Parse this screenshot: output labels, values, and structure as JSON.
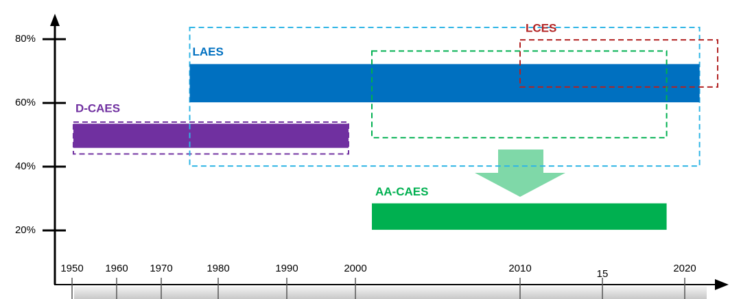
{
  "chart_data": {
    "type": "range-bar",
    "xlim": [
      1946,
      2022.5
    ],
    "xticks": [
      1950,
      1960,
      1970,
      1980,
      1990,
      2000,
      2010,
      {
        "value": 2015,
        "label": "15"
      },
      2020
    ],
    "ylim": [
      3,
      88
    ],
    "yticks": [
      {
        "value": 20,
        "label": "20%"
      },
      {
        "value": 40,
        "label": "40%"
      },
      {
        "value": 60,
        "label": "60%"
      },
      {
        "value": 80,
        "label": "80%"
      }
    ],
    "series": [
      {
        "name": "D-CAES",
        "color": "#7030a0",
        "box_color": "#7030a0",
        "bar": {
          "x": [
            1950.3,
            1999
          ],
          "y": [
            45.9,
            53.5
          ]
        },
        "box": {
          "x": [
            1950.3,
            1999
          ],
          "y": [
            44,
            54
          ]
        }
      },
      {
        "name": "LAES",
        "color": "#0070c0",
        "box_color": "#2fb5e5",
        "bar": {
          "x": [
            1975,
            2020.9
          ],
          "y": [
            60.2,
            72.2
          ]
        },
        "box": {
          "x": [
            1975,
            2020.9
          ],
          "y": [
            40.2,
            83.7
          ]
        }
      },
      {
        "name": "LCES",
        "color": "#b22222",
        "box_color": "#b22222",
        "box": {
          "x": [
            2010,
            2022
          ],
          "y": [
            65,
            79.8
          ]
        }
      },
      {
        "name": "AA-CAES",
        "color": "#00b050",
        "box_color": "#00b050",
        "bar": {
          "x": [
            2001,
            2018.9
          ],
          "y": [
            20.2,
            28.5
          ]
        },
        "box": {
          "x": [
            2001,
            2018.9
          ],
          "y": [
            49.1,
            76.3
          ]
        }
      }
    ]
  }
}
